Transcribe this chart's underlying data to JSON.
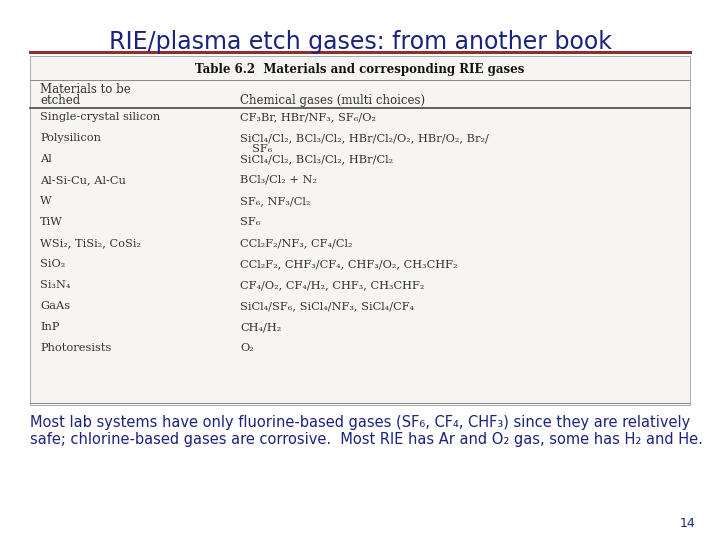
{
  "title": "RIE/plasma etch gases: from another book",
  "title_color": "#1a237e",
  "title_fontsize": 17,
  "divider_color": "#8b3030",
  "table_title": "Table 6.2  Materials and corresponding RIE gases",
  "col1_header_line1": "Materials to be",
  "col1_header_line2": "etched",
  "col2_header": "Chemical gases (multi choices)",
  "rows": [
    [
      "Single-crystal silicon",
      "CF₃Br, HBr/NF₃, SF₆/O₂"
    ],
    [
      "Polysilicon",
      "SiCl₄/Cl₂, BCl₃/Cl₂, HBr/Cl₂/O₂, HBr/O₂, Br₂/\n    SF₆"
    ],
    [
      "Al",
      "SiCl₄/Cl₂, BCl₃/Cl₂, HBr/Cl₂"
    ],
    [
      "Al-Si-Cu, Al-Cu",
      "BCl₃/Cl₂ + N₂"
    ],
    [
      "W",
      "SF₆, NF₃/Cl₂"
    ],
    [
      "TiW",
      "SF₆"
    ],
    [
      "WSi₂, TiSi₂, CoSi₂",
      "CCl₂F₂/NF₃, CF₄/Cl₂"
    ],
    [
      "SiO₂",
      "CCl₂F₂, CHF₃/CF₄, CHF₃/O₂, CH₃CHF₂"
    ],
    [
      "Si₃N₄",
      "CF₄/O₂, CF₄/H₂, CHF₃, CH₃CHF₂"
    ],
    [
      "GaAs",
      "SiCl₄/SF₆, SiCl₄/NF₃, SiCl₄/CF₄"
    ],
    [
      "InP",
      "CH₄/H₂"
    ],
    [
      "Photoresists",
      "O₂"
    ]
  ],
  "footer_line1": "Most lab systems have only fluorine-based gases (SF₆, CF₄, CHF₃) since they are relatively",
  "footer_line2": "safe; chlorine-based gases are corrosive.  Most RIE has Ar and O₂ gas, some has H₂ and He.",
  "footer_color": "#1a237e",
  "footer_fontsize": 10.5,
  "page_number": "14",
  "bg_color": "#ffffff",
  "text_color": "#2c2c2c",
  "table_text_color": "#333333"
}
